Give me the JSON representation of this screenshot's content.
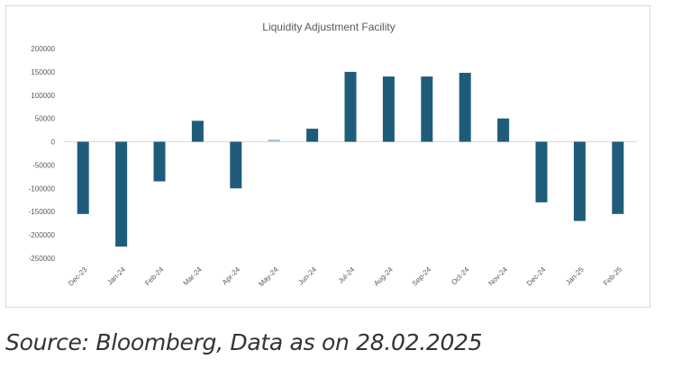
{
  "chart_data": {
    "type": "bar",
    "title": "Liquidity Adjustment Facility",
    "xlabel": "",
    "ylabel": "",
    "ylim": [
      -250000,
      200000
    ],
    "yticks": [
      200000,
      150000,
      100000,
      50000,
      0,
      -50000,
      -100000,
      -150000,
      -200000,
      -250000
    ],
    "categories": [
      "Dec-23",
      "Jan-24",
      "Feb-24",
      "Mar-24",
      "Apr-24",
      "May-24",
      "Jun-24",
      "Jul-24",
      "Aug-24",
      "Sep-24",
      "Oct-24",
      "Nov-24",
      "Dec-24",
      "Jan-25",
      "Feb-25"
    ],
    "values": [
      -155000,
      -225000,
      -85000,
      45000,
      -100000,
      5000,
      28000,
      150000,
      140000,
      140000,
      148000,
      50000,
      -130000,
      -170000,
      -155000
    ],
    "colors": {
      "bar": "#1f5c7a",
      "small_bar": "#a9c8d8",
      "axis": "#d9d9d9"
    }
  },
  "caption": "Source: Bloomberg, Data as on 28.02.2025"
}
